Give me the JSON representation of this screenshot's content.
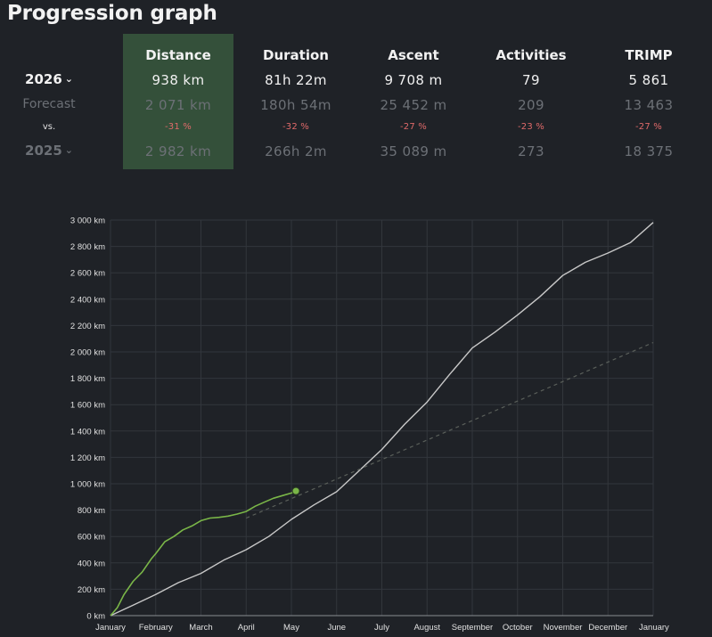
{
  "title": "Progression graph",
  "rows": {
    "current_year": "2026",
    "forecast": "Forecast",
    "vs": "vs.",
    "previous_year": "2025"
  },
  "columns": [
    {
      "header": "Distance",
      "current": "938 km",
      "forecast": "2 071 km",
      "change": "-31 %",
      "previous": "2 982 km"
    },
    {
      "header": "Duration",
      "current": "81h 22m",
      "forecast": "180h 54m",
      "change": "-32 %",
      "previous": "266h 2m"
    },
    {
      "header": "Ascent",
      "current": "9 708 m",
      "forecast": "25 452 m",
      "change": "-27 %",
      "previous": "35 089 m"
    },
    {
      "header": "Activities",
      "current": "79",
      "forecast": "209",
      "change": "-23 %",
      "previous": "273"
    },
    {
      "header": "TRIMP",
      "current": "5 861",
      "forecast": "13 463",
      "change": "-27 %",
      "previous": "18 375"
    }
  ],
  "colors": {
    "current": "#7ab648",
    "previous": "#c8c8c8",
    "forecast": "#5a5f5a",
    "highlight": "#34503a",
    "negative": "#e06a6a"
  },
  "chart_data": {
    "type": "line",
    "x_unit": "month",
    "xlim": [
      0,
      12
    ],
    "ylim": [
      0,
      3000
    ],
    "y_ticks": [
      0,
      200,
      400,
      600,
      800,
      1000,
      1200,
      1400,
      1600,
      1800,
      2000,
      2200,
      2400,
      2600,
      2800,
      3000
    ],
    "y_tick_labels": [
      "0 km",
      "200 km",
      "400 km",
      "600 km",
      "800 km",
      "1 000 km",
      "1 200 km",
      "1 400 km",
      "1 600 km",
      "1 800 km",
      "2 000 km",
      "2 200 km",
      "2 400 km",
      "2 600 km",
      "2 800 km",
      "3 000 km"
    ],
    "x_tick_labels": [
      "January",
      "February",
      "March",
      "April",
      "May",
      "June",
      "July",
      "August",
      "September",
      "October",
      "November",
      "December",
      "January"
    ],
    "grid": true,
    "series": [
      {
        "name": "2026",
        "x": [
          0,
          0.15,
          0.3,
          0.5,
          0.7,
          0.9,
          1.0,
          1.2,
          1.4,
          1.6,
          1.8,
          2.0,
          2.2,
          2.4,
          2.6,
          2.8,
          3.0,
          3.2,
          3.4,
          3.6,
          3.8,
          4.0,
          4.1
        ],
        "y": [
          0,
          60,
          160,
          260,
          330,
          430,
          470,
          560,
          600,
          650,
          680,
          720,
          740,
          745,
          755,
          770,
          790,
          830,
          860,
          890,
          910,
          930,
          945
        ]
      },
      {
        "name": "2025",
        "x": [
          0,
          0.25,
          0.5,
          1.0,
          1.5,
          2.0,
          2.5,
          3.0,
          3.5,
          4.0,
          4.5,
          5.0,
          5.5,
          6.0,
          6.5,
          7.0,
          7.5,
          8.0,
          8.5,
          9.0,
          9.5,
          10.0,
          10.5,
          11.0,
          11.5,
          12.0
        ],
        "y": [
          0,
          40,
          80,
          160,
          250,
          320,
          420,
          500,
          600,
          730,
          840,
          940,
          1100,
          1260,
          1450,
          1620,
          1830,
          2030,
          2150,
          2280,
          2420,
          2580,
          2680,
          2750,
          2830,
          2982
        ]
      },
      {
        "name": "Forecast",
        "x": [
          3.0,
          12.0
        ],
        "y": [
          740,
          2071
        ]
      }
    ]
  }
}
